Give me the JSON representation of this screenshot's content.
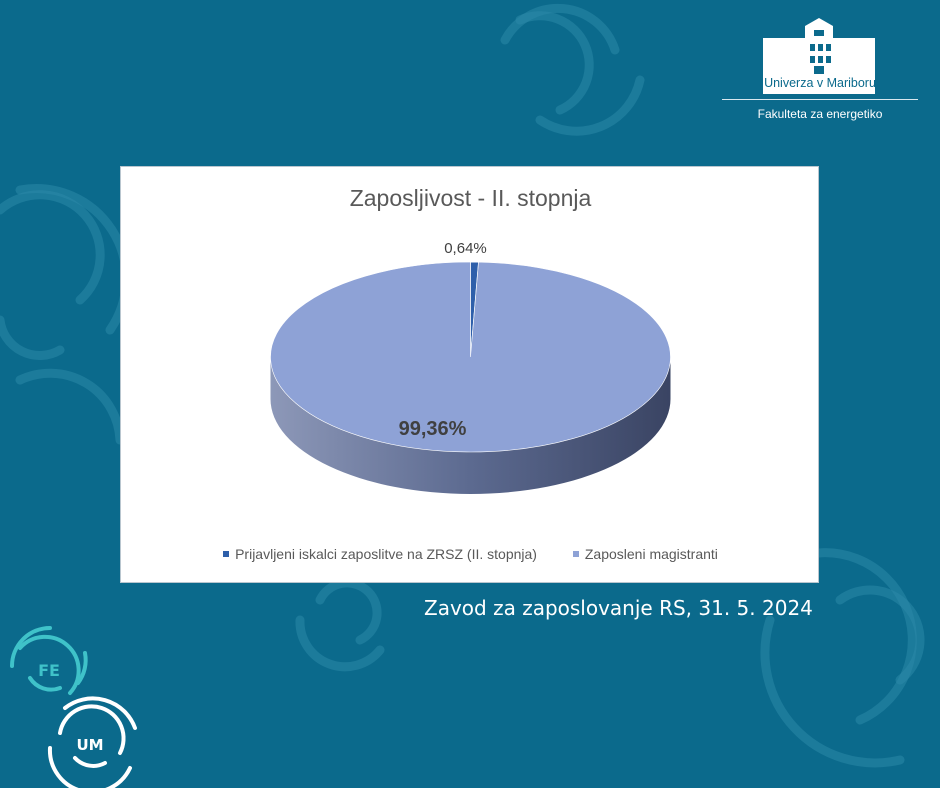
{
  "branding": {
    "university": "Univerza v Mariboru",
    "faculty": "Fakulteta za energetiko",
    "fe_mark": "FE",
    "um_mark": "UM"
  },
  "source_note": "Zavod za zaposlovanje RS, 31. 5. 2024",
  "colors": {
    "background": "#0b6a8c",
    "series_registered": "#2e5faa",
    "series_employed": "#8ea2d6",
    "series_employed_side": "#48557a"
  },
  "chart_data": {
    "type": "pie",
    "style": "3d",
    "title": "Zaposljivost - II. stopnja",
    "categories": [
      "Prijavljeni iskalci zaposlitve na ZRSZ (II. stopnja)",
      "Zaposleni magistranti"
    ],
    "values": [
      0.64,
      99.36
    ],
    "data_labels": [
      "0,64%",
      "99,36%"
    ],
    "legend_position": "bottom"
  }
}
